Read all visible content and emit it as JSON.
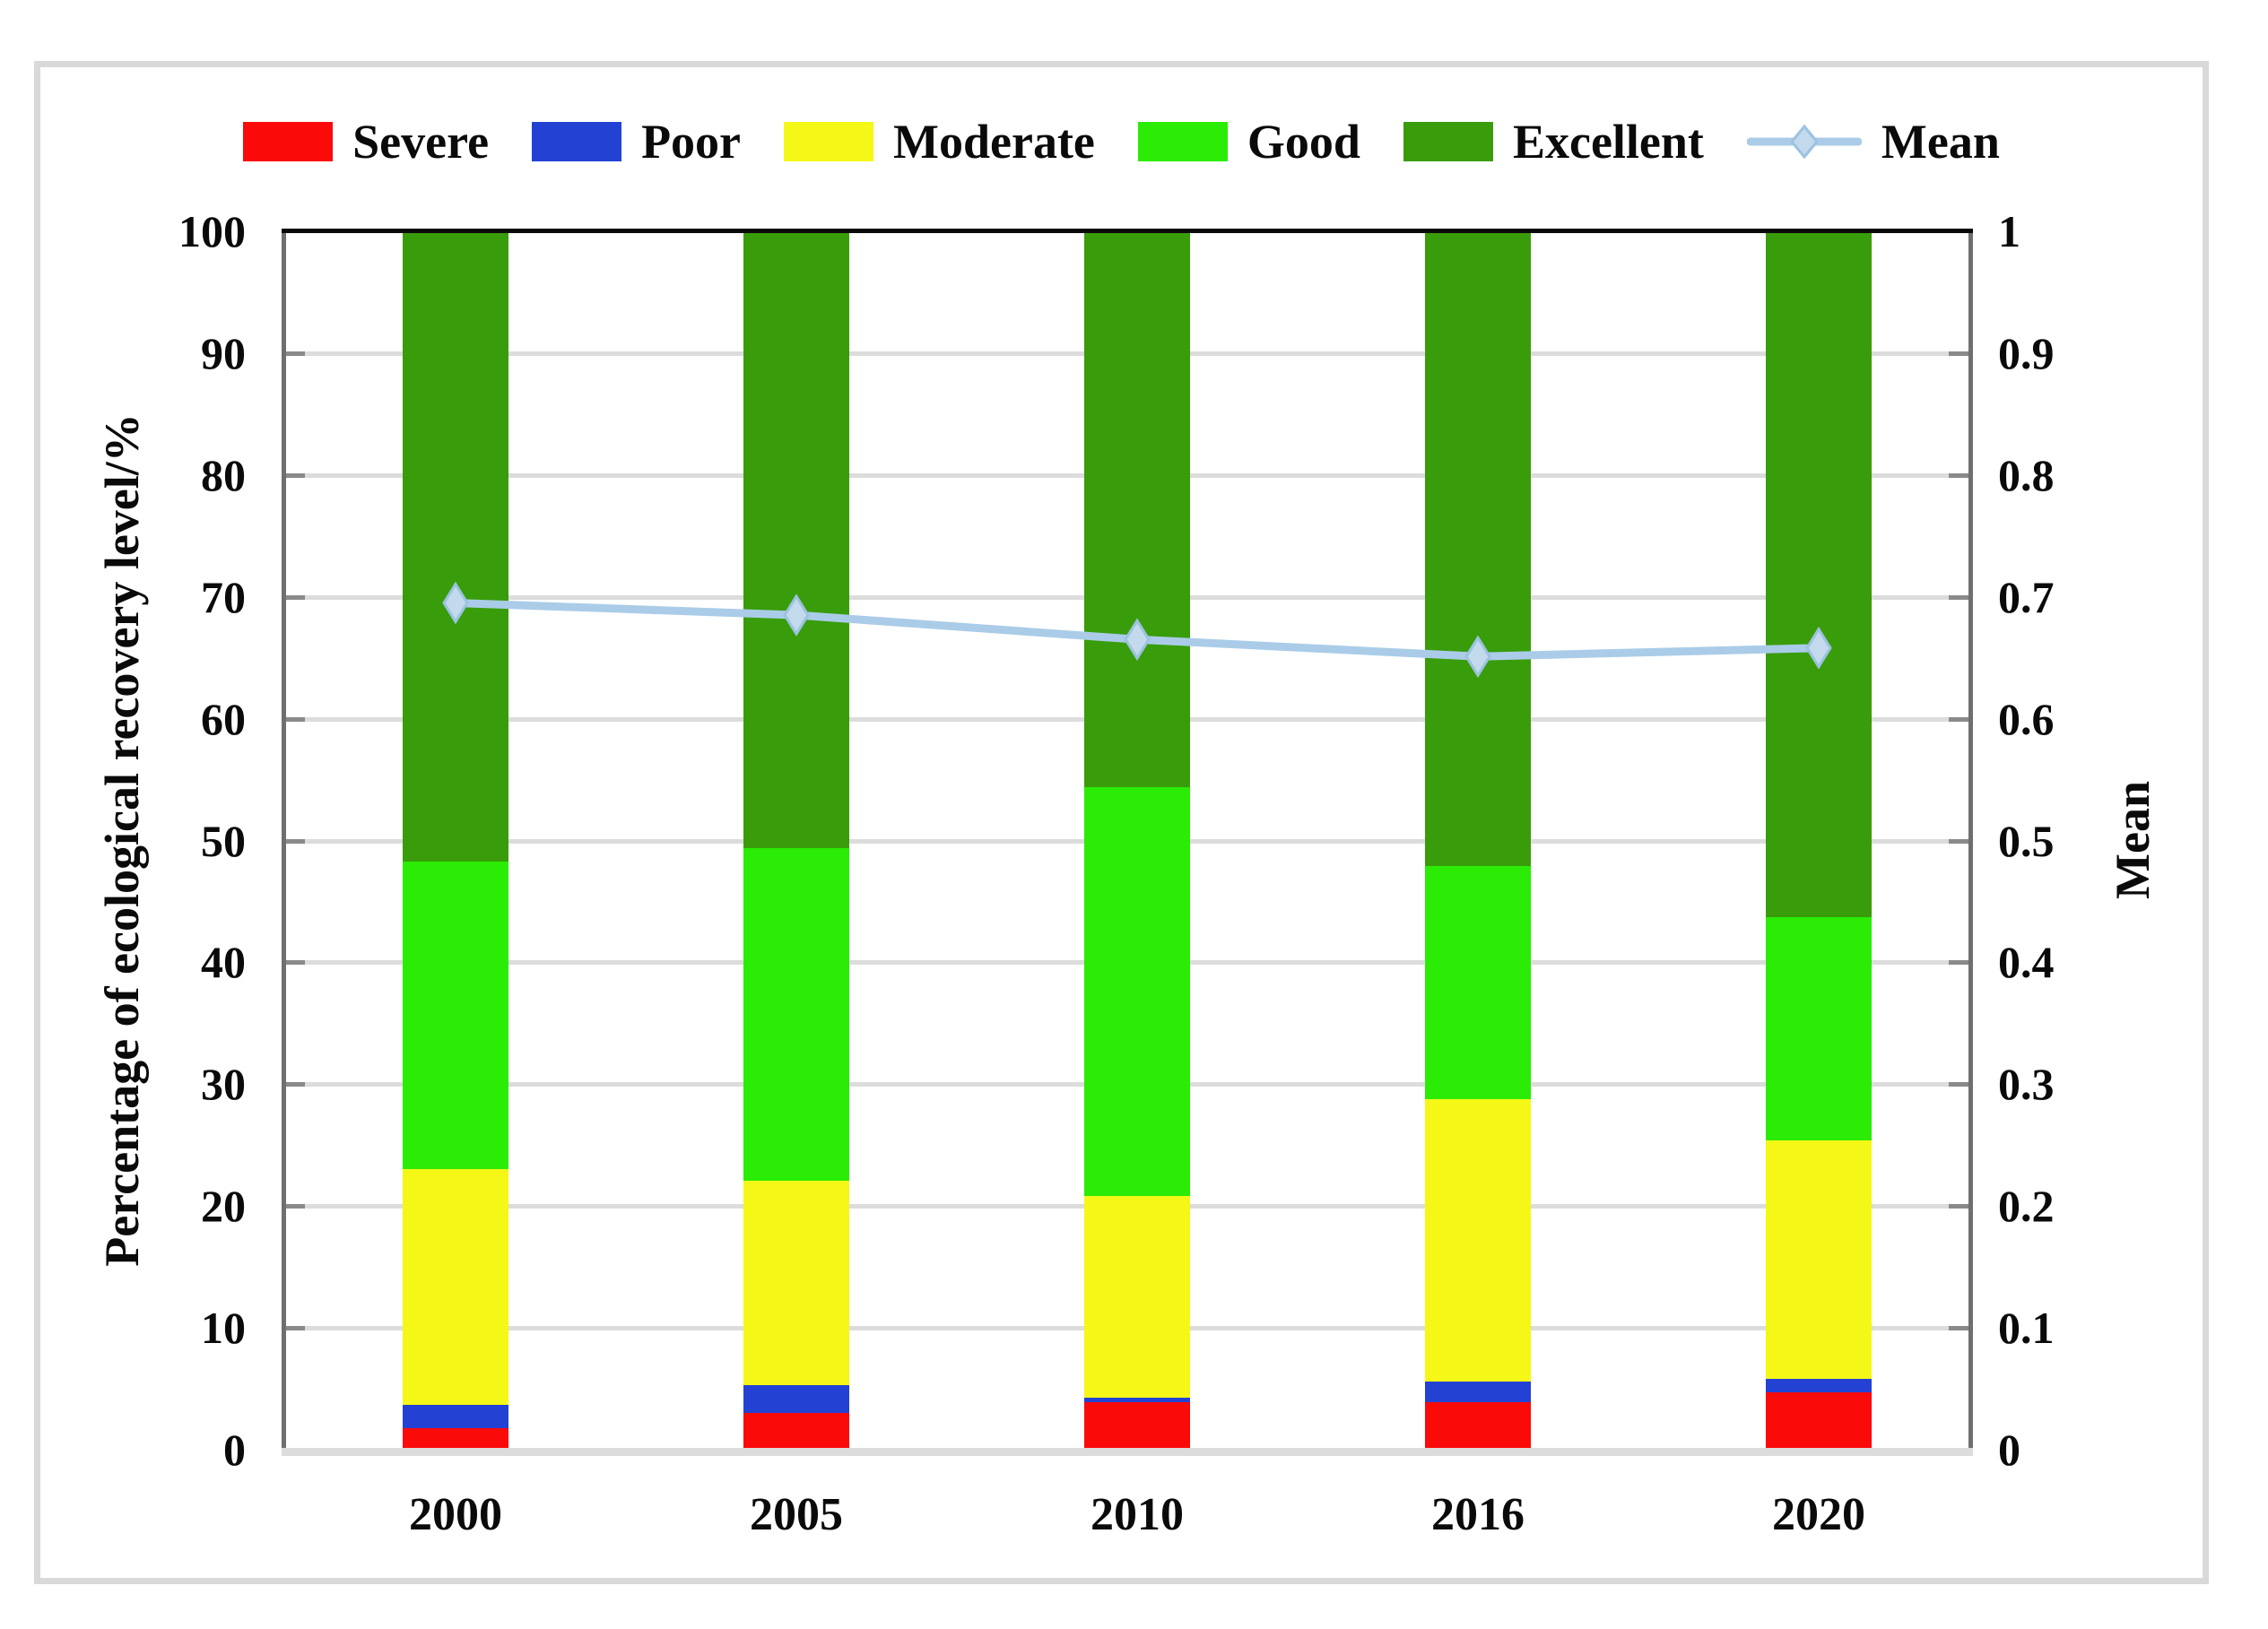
{
  "chart_data": {
    "type": "bar",
    "variant": "stacked-percent-columns-with-mean-line",
    "categories": [
      "2000",
      "2005",
      "2010",
      "2016",
      "2020"
    ],
    "series": [
      {
        "name": "Severe",
        "color": "#fb0a0a",
        "values": [
          1.8,
          3.0,
          3.9,
          3.9,
          4.7
        ]
      },
      {
        "name": "Poor",
        "color": "#2342d4",
        "values": [
          1.9,
          2.3,
          0.4,
          1.7,
          1.1
        ]
      },
      {
        "name": "Moderate",
        "color": "#f5f816",
        "values": [
          19.3,
          16.8,
          16.5,
          23.2,
          19.6
        ]
      },
      {
        "name": "Good",
        "color": "#2bec04",
        "values": [
          25.3,
          27.3,
          33.6,
          19.1,
          18.3
        ]
      },
      {
        "name": "Excellent",
        "color": "#399c0a",
        "values": [
          51.7,
          50.6,
          45.6,
          52.1,
          56.3
        ]
      }
    ],
    "line": {
      "name": "Mean",
      "axis": "right",
      "color": "#aacce8",
      "marker": "diamond",
      "values": [
        0.695,
        0.685,
        0.665,
        0.651,
        0.658
      ]
    },
    "left_axis": {
      "title": "Percentage of ecological recovery level/%",
      "min": 0,
      "max": 100,
      "tick_step": 10,
      "tick_labels": [
        "0",
        "10",
        "20",
        "30",
        "40",
        "50",
        "60",
        "70",
        "80",
        "90",
        "100"
      ]
    },
    "right_axis": {
      "title": "Mean",
      "min": 0,
      "max": 1,
      "tick_step": 0.1,
      "tick_labels": [
        "0",
        "0.1",
        "0.2",
        "0.3",
        "0.4",
        "0.5",
        "0.6",
        "0.7",
        "0.8",
        "0.9",
        "1"
      ]
    },
    "legend_order": [
      "Severe",
      "Poor",
      "Moderate",
      "Good",
      "Excellent",
      "Mean"
    ],
    "grid": {
      "horizontal": true,
      "color": "#dcdcdc"
    }
  },
  "styles": {
    "frame_border": "#d9d9d9",
    "spine_top": "#0a0a0a",
    "spine_sides": "#6f6f6f",
    "spine_bottom": "#dcdcdc",
    "tick_color": "#8a8a8a",
    "grid_color": "#dcdcdc",
    "mean_line": "#aacce8",
    "marker_fill": "#c3d9ec",
    "marker_stroke": "#9cc2e0",
    "text_color": "#0a0a0a"
  }
}
